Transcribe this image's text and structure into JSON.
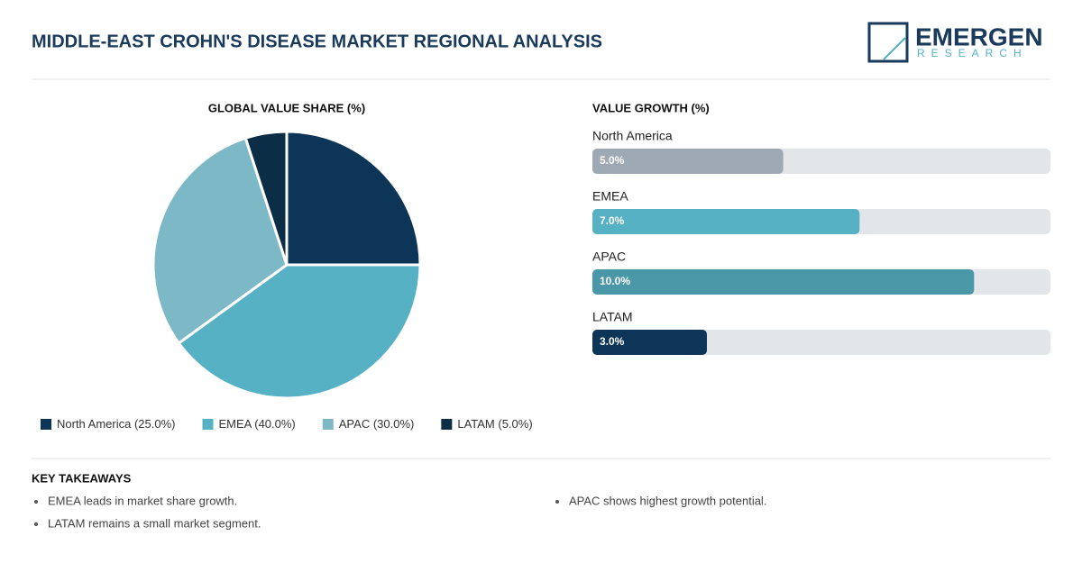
{
  "header": {
    "title": "MIDDLE-EAST CROHN'S DISEASE MARKET REGIONAL ANALYSIS",
    "logo_name": "EMERGEN",
    "logo_sub": "RESEARCH"
  },
  "chart_data": [
    {
      "type": "pie",
      "title": "GLOBAL VALUE SHARE (%)",
      "categories": [
        "North America",
        "EMEA",
        "APAC",
        "LATAM"
      ],
      "values": [
        25,
        40,
        30,
        5
      ],
      "legend_labels": [
        "North America (25.0%)",
        "EMEA (40.0%)",
        "APAC (30.0%)",
        "LATAM (5.0%)"
      ],
      "colors": [
        "#0d3557",
        "#56b1c5",
        "#7db8c7",
        "#0b2d45"
      ]
    },
    {
      "type": "hbar",
      "title": "VALUE GROWTH (%)",
      "categories": [
        "North America",
        "EMEA",
        "APAC",
        "LATAM"
      ],
      "values": [
        5,
        7,
        10,
        3
      ],
      "value_labels": [
        "5.0%",
        "7.0%",
        "10.0%",
        "3.0%"
      ],
      "colors": [
        "#9ea9b3",
        "#56b1c5",
        "#4a97a8",
        "#0d3557"
      ],
      "xlim": [
        0,
        12
      ]
    }
  ],
  "takeaways": {
    "title": "KEY TAKEAWAYS",
    "items": [
      "EMEA leads in market share growth.",
      "APAC shows highest growth potential.",
      "LATAM remains a small market segment."
    ]
  }
}
